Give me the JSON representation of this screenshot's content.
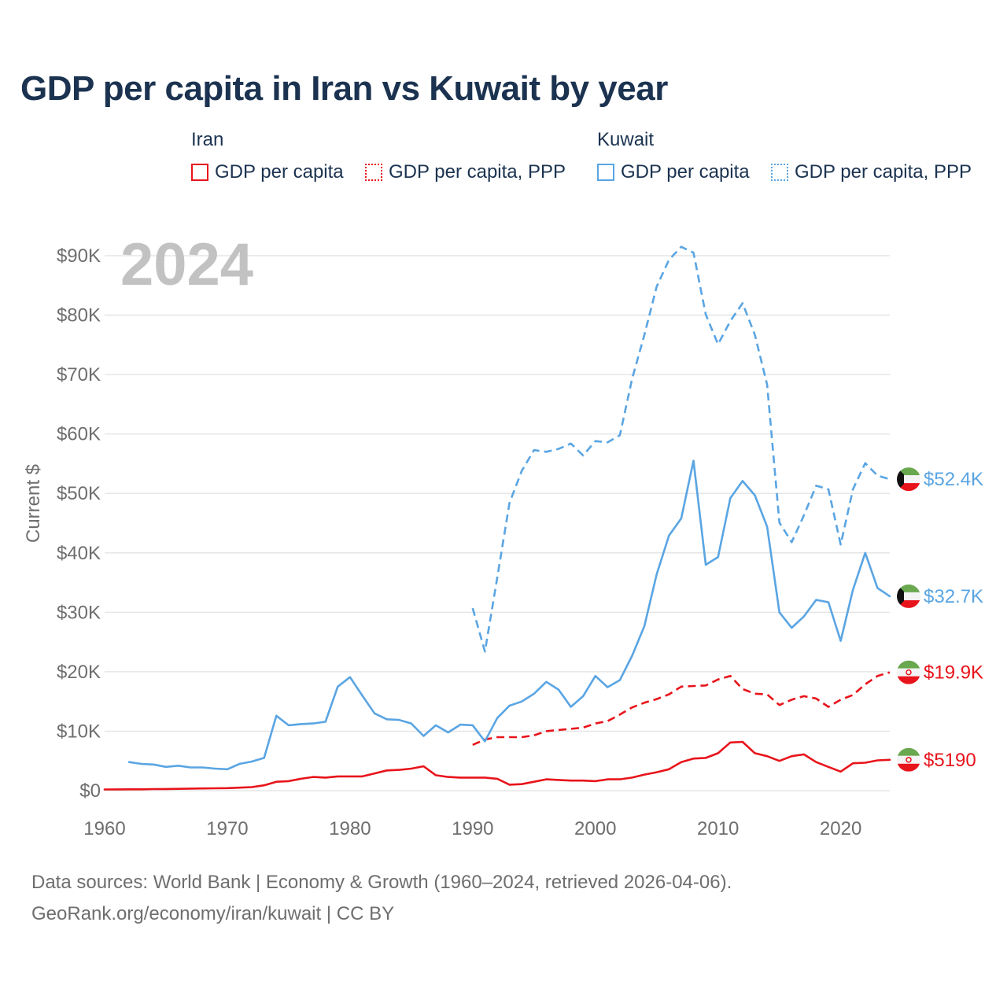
{
  "title": "GDP per capita in Iran vs Kuwait by year",
  "legend": {
    "groups": [
      {
        "name": "Iran",
        "items": [
          {
            "label": "GDP per capita",
            "style": "solid",
            "color": "#e8141b"
          },
          {
            "label": "GDP per capita, PPP",
            "style": "dotted",
            "color": "#e8141b"
          }
        ]
      },
      {
        "name": "Kuwait",
        "items": [
          {
            "label": "GDP per capita",
            "style": "solid",
            "color": "#5aa5e3"
          },
          {
            "label": "GDP per capita, PPP",
            "style": "dotted",
            "color": "#5aa5e3"
          }
        ]
      }
    ]
  },
  "chart_data": {
    "type": "line",
    "year_label": "2024",
    "ylabel": "Current $",
    "xlabel": "",
    "xlim": [
      1960,
      2024
    ],
    "ylim": [
      0,
      90000
    ],
    "x_ticks": [
      "1960",
      "1970",
      "1980",
      "1990",
      "2000",
      "2010",
      "2020"
    ],
    "y_ticks": [
      "$0",
      "$10K",
      "$20K",
      "$30K",
      "$40K",
      "$50K",
      "$60K",
      "$70K",
      "$80K",
      "$90K"
    ],
    "grid": "horizontal",
    "series": [
      {
        "name": "Iran GDP per capita",
        "country": "Iran",
        "dash": "solid",
        "color": "#e8141b",
        "end_label": "$5190",
        "start_year": 1960,
        "values": [
          200,
          210,
          220,
          230,
          260,
          280,
          310,
          340,
          370,
          400,
          420,
          500,
          600,
          900,
          1500,
          1600,
          2000,
          2300,
          2200,
          2400,
          2400,
          2400,
          2900,
          3400,
          3500,
          3700,
          4100,
          2600,
          2300,
          2200,
          2200,
          2200,
          2000,
          1000,
          1100,
          1500,
          1900,
          1800,
          1700,
          1700,
          1600,
          1900,
          1900,
          2200,
          2700,
          3100,
          3600,
          4800,
          5400,
          5500,
          6300,
          8100,
          8200,
          6300,
          5800,
          5000,
          5800,
          6100,
          4800,
          4000,
          3200,
          4600,
          4700,
          5100,
          5190
        ]
      },
      {
        "name": "Iran GDP per capita, PPP",
        "country": "Iran",
        "dash": "dashed",
        "color": "#e8141b",
        "end_label": "$19.9K",
        "start_year": 1990,
        "values": [
          7700,
          8600,
          9000,
          9000,
          9000,
          9300,
          10000,
          10200,
          10400,
          10600,
          11300,
          11700,
          12800,
          14000,
          14800,
          15400,
          16200,
          17500,
          17600,
          17700,
          18700,
          19300,
          17100,
          16300,
          16200,
          14400,
          15300,
          15900,
          15500,
          14100,
          15300,
          16100,
          17900,
          19300,
          19900
        ]
      },
      {
        "name": "Kuwait GDP per capita",
        "country": "Kuwait",
        "dash": "solid",
        "color": "#5aa5e3",
        "end_label": "$32.7K",
        "start_year": 1962,
        "values": [
          4800,
          4500,
          4400,
          4000,
          4200,
          3900,
          3900,
          3700,
          3600,
          4500,
          4900,
          5500,
          12600,
          11000,
          11200,
          11300,
          11600,
          17500,
          19100,
          16000,
          13000,
          12000,
          11900,
          11300,
          9200,
          11000,
          9800,
          11100,
          11000,
          8300,
          12200,
          14300,
          15000,
          16300,
          18300,
          17000,
          14100,
          15900,
          19300,
          17400,
          18600,
          22700,
          27700,
          36400,
          42900,
          45800,
          55500,
          38000,
          39300,
          49200,
          52100,
          49700,
          44400,
          30000,
          27400,
          29300,
          32100,
          31700,
          25200,
          33800,
          40000,
          34100,
          32700
        ]
      },
      {
        "name": "Kuwait GDP per capita, PPP",
        "country": "Kuwait",
        "dash": "dashed",
        "color": "#5aa5e3",
        "end_label": "$52.4K",
        "start_year": 1990,
        "values": [
          30700,
          23400,
          35800,
          48400,
          53800,
          57300,
          57000,
          57500,
          58400,
          56400,
          58800,
          58600,
          59800,
          69300,
          76700,
          84800,
          89300,
          91500,
          90500,
          80100,
          75100,
          79000,
          82000,
          76700,
          68300,
          45100,
          41800,
          46300,
          51300,
          50700,
          41400,
          50700,
          55100,
          53000,
          52400
        ]
      }
    ]
  },
  "footer": {
    "line1": "Data sources: World Bank | Economy & Growth (1960–2024, retrieved 2026-04-06).",
    "line2": "GeoRank.org/economy/iran/kuwait | CC BY"
  }
}
